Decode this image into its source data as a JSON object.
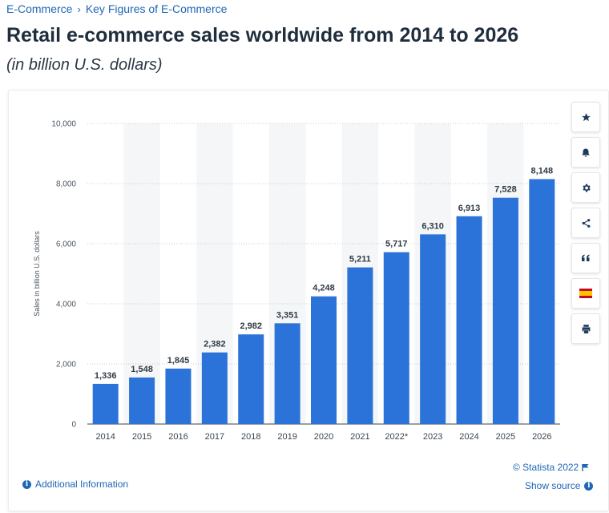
{
  "breadcrumb": {
    "items": [
      "E-Commerce",
      "Key Figures of E-Commerce"
    ],
    "separator": "›"
  },
  "header": {
    "title": "Retail e-commerce sales worldwide from 2014 to 2026",
    "subtitle": "(in billion U.S. dollars)"
  },
  "toolbar": {
    "icons": [
      "star-icon",
      "bell-icon",
      "gear-icon",
      "share-icon",
      "quote-icon",
      "spain-flag-icon",
      "print-icon"
    ]
  },
  "footer": {
    "copyright": "© Statista 2022",
    "additional_info": "Additional Information",
    "show_source": "Show source"
  },
  "colors": {
    "bar": "#2b72d9",
    "link": "#1f66b5",
    "alt_band": "#f4f6f8"
  },
  "chart_data": {
    "type": "bar",
    "categories": [
      "2014",
      "2015",
      "2016",
      "2017",
      "2018",
      "2019",
      "2020",
      "2021",
      "2022*",
      "2023",
      "2024",
      "2025",
      "2026"
    ],
    "values": [
      1336,
      1548,
      1845,
      2382,
      2982,
      3351,
      4248,
      5211,
      5717,
      6310,
      6913,
      7528,
      8148
    ],
    "value_labels": [
      "1,336",
      "1,548",
      "1,845",
      "2,382",
      "2,982",
      "3,351",
      "4,248",
      "5,211",
      "5,717",
      "6,310",
      "6,913",
      "7,528",
      "8,148"
    ],
    "ylabel": "Sales in billion U.S. dollars",
    "ylim": [
      0,
      10000
    ],
    "yticks": [
      0,
      2000,
      4000,
      6000,
      8000,
      10000
    ],
    "ytick_labels": [
      "0",
      "2,000",
      "4,000",
      "6,000",
      "8,000",
      "10,000"
    ],
    "grid": "dotted horizontal",
    "legend": "none"
  }
}
